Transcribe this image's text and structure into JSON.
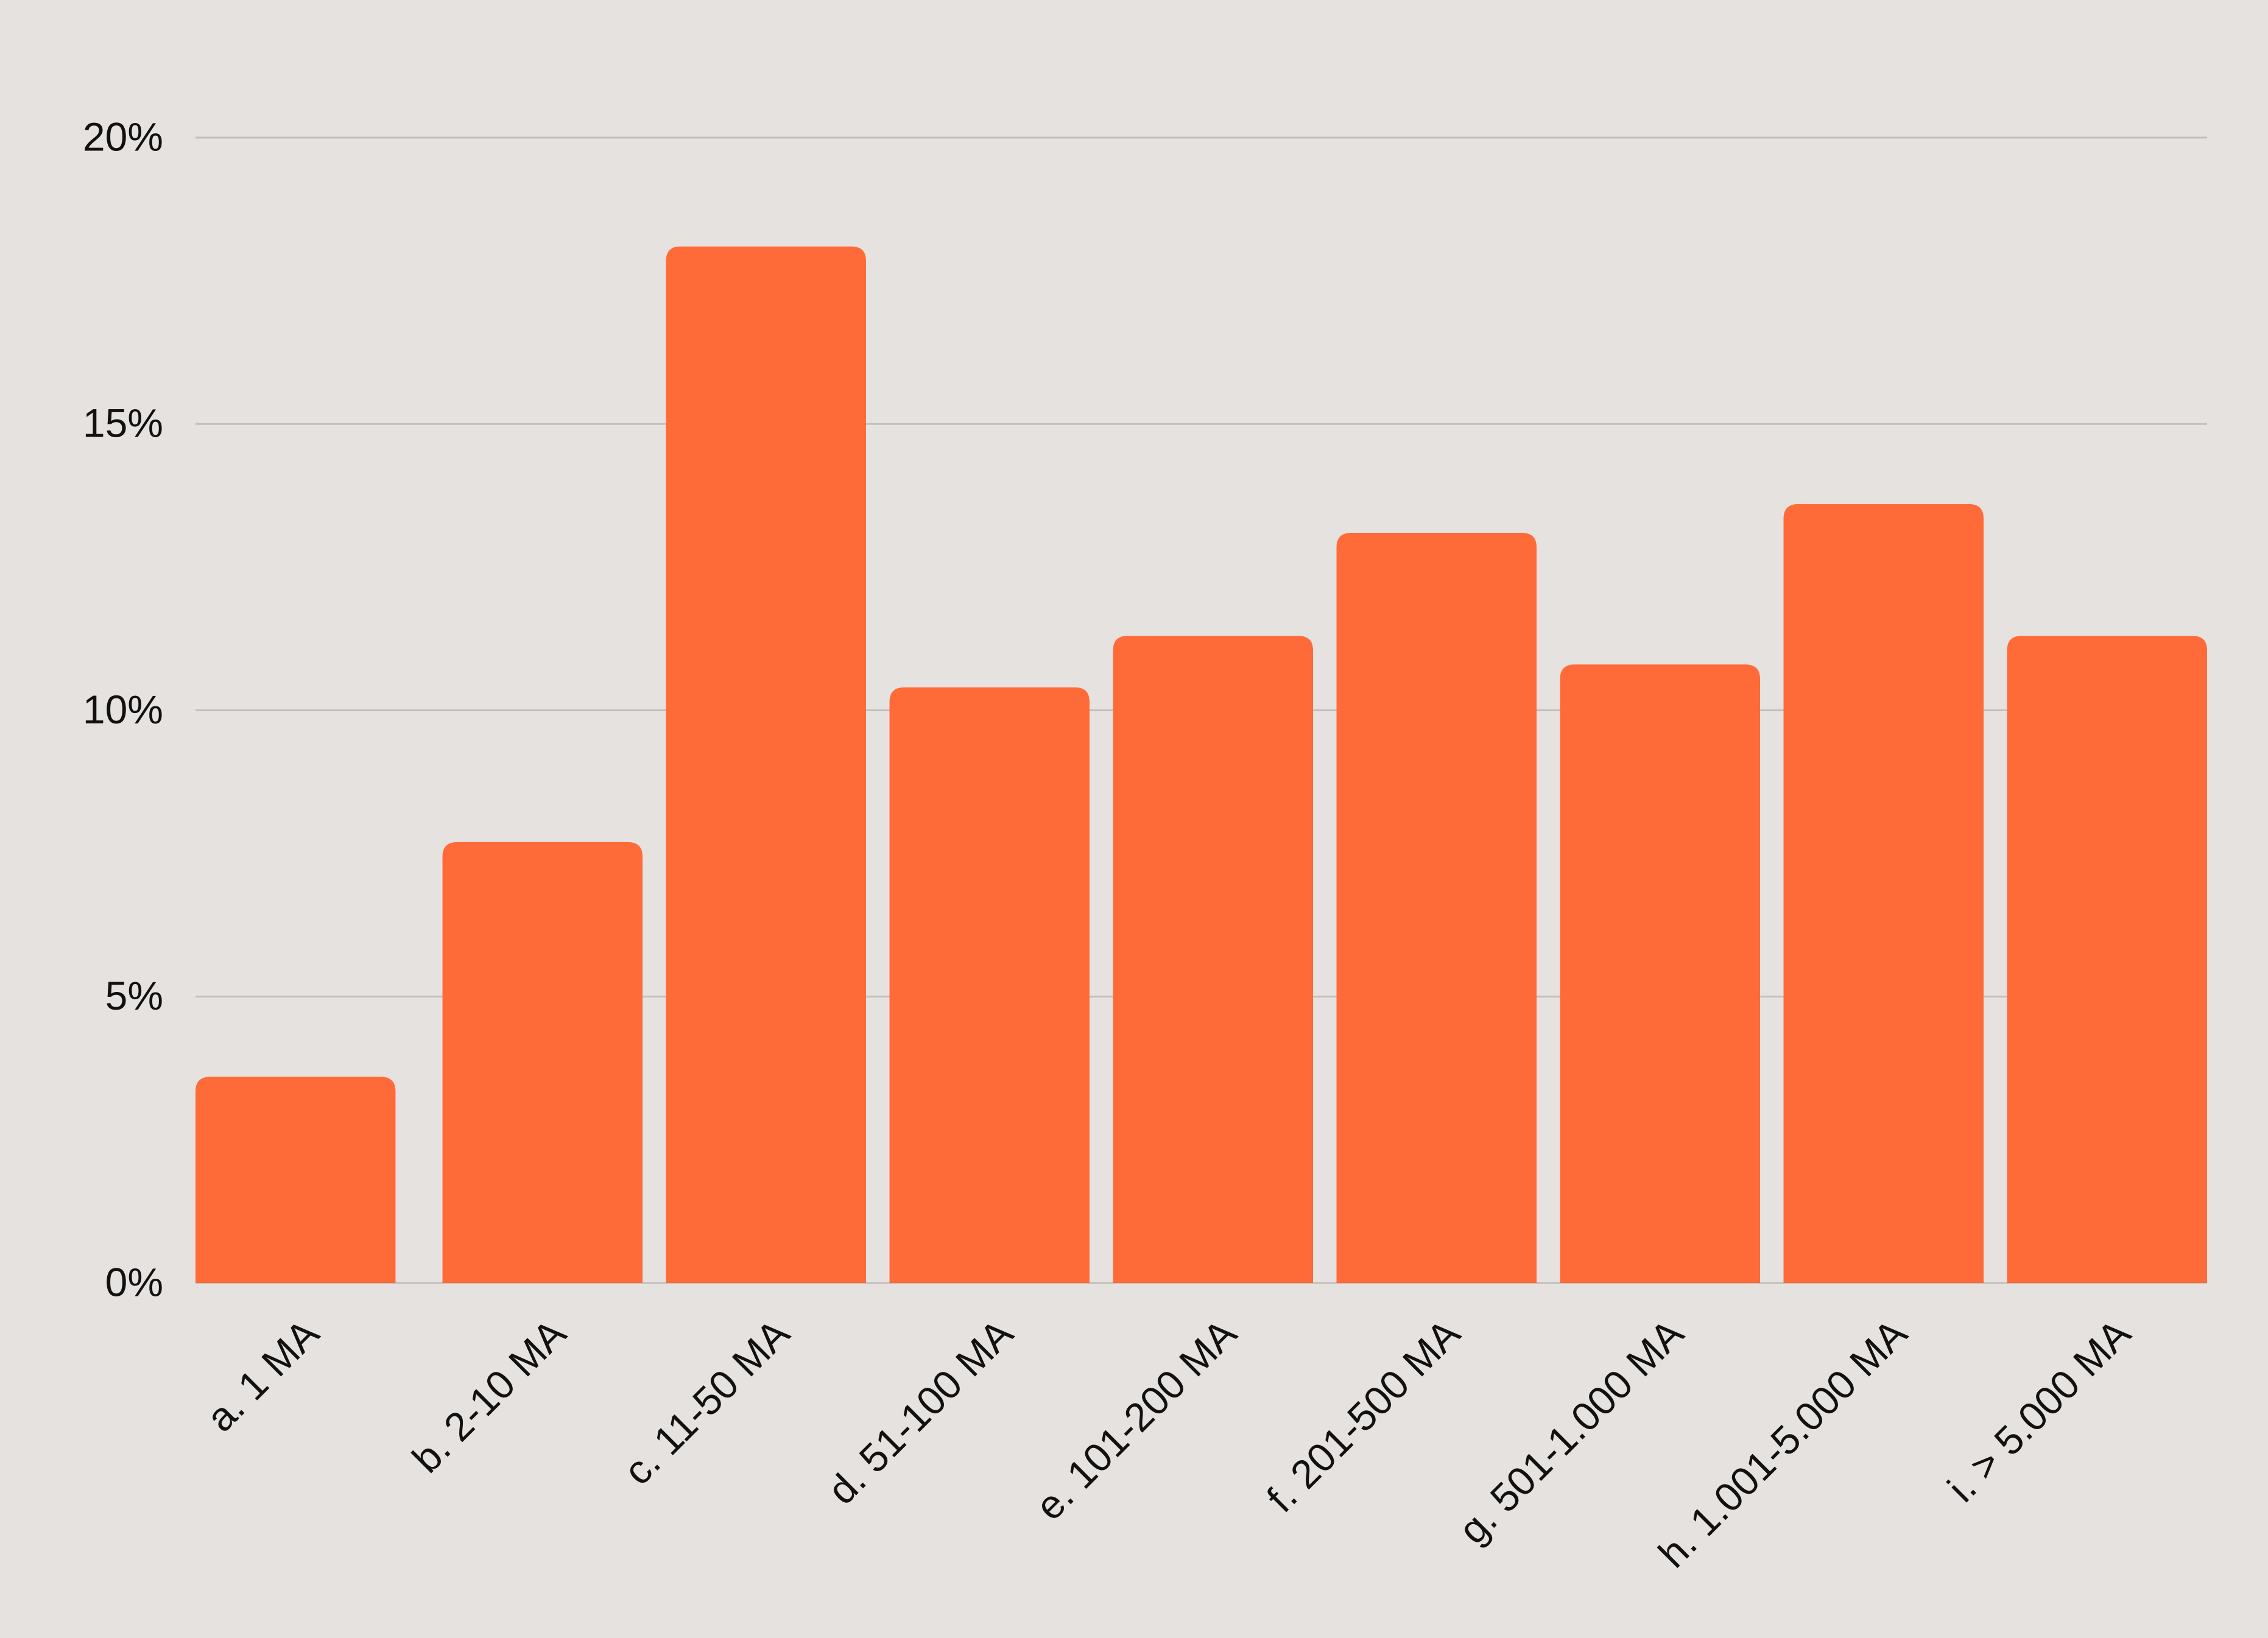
{
  "chart_data": {
    "type": "bar",
    "categories": [
      "a. 1 MA",
      "b. 2-10 MA",
      "c. 11-50 MA",
      "d. 51-100 MA",
      "e. 101-200 MA",
      "f. 201-500 MA",
      "g. 501-1.000 MA",
      "h. 1.001-5.000 MA",
      "i. > 5.000 MA"
    ],
    "values": [
      3.6,
      7.7,
      18.1,
      10.4,
      11.3,
      13.1,
      10.8,
      13.6,
      11.3
    ],
    "color": "#ff6a39",
    "ylim": [
      0,
      20
    ],
    "yticks": [
      {
        "value": 0,
        "label": "0%"
      },
      {
        "value": 5,
        "label": "5%"
      },
      {
        "value": 10,
        "label": "10%"
      },
      {
        "value": 15,
        "label": "15%"
      },
      {
        "value": 20,
        "label": "20%"
      }
    ],
    "grid": true
  }
}
